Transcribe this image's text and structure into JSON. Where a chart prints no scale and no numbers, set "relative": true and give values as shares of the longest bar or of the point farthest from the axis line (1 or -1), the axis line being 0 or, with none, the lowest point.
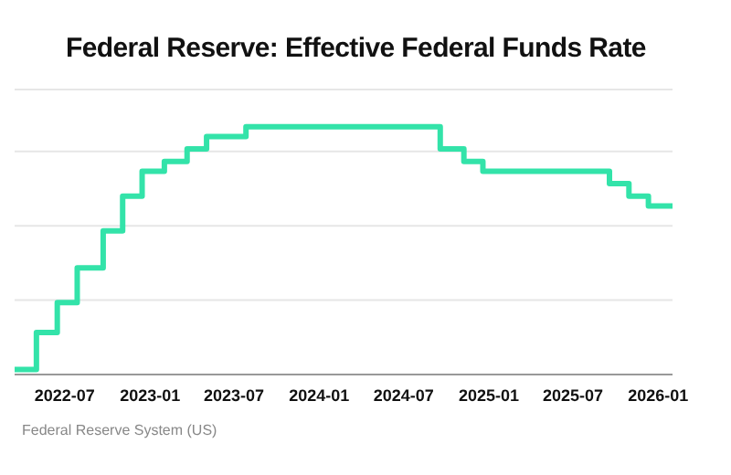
{
  "chart_data": {
    "type": "step",
    "title": "Federal Reserve: Effective Federal Funds Rate",
    "annotations": [
      "Federal Reserve System (US)"
    ],
    "relative": true,
    "x": [
      "2022-03-15",
      "2022-05-01",
      "2022-06-15",
      "2022-07-28",
      "2022-09-22",
      "2022-11-03",
      "2022-12-15",
      "2023-02-01",
      "2023-03-22",
      "2023-05-03",
      "2023-07-27",
      "2024-09-18",
      "2024-11-08",
      "2024-12-19",
      "2025-09-18",
      "2025-10-30",
      "2025-12-11",
      "2026-02-01"
    ],
    "series": [
      {
        "color": "#33e3a9",
        "values": [
          0.02,
          0.17,
          0.29,
          0.43,
          0.58,
          0.72,
          0.82,
          0.86,
          0.91,
          0.96,
          1,
          0.91,
          0.86,
          0.82,
          0.77,
          0.72,
          0.68,
          0.68
        ]
      }
    ],
    "xlim": [
      "2022-03-15",
      "2026-02-01"
    ],
    "xticks": [
      "2022-07",
      "2023-01",
      "2023-07",
      "2024-01",
      "2024-07",
      "2025-01",
      "2025-07",
      "2026-01"
    ],
    "grid": "y"
  }
}
